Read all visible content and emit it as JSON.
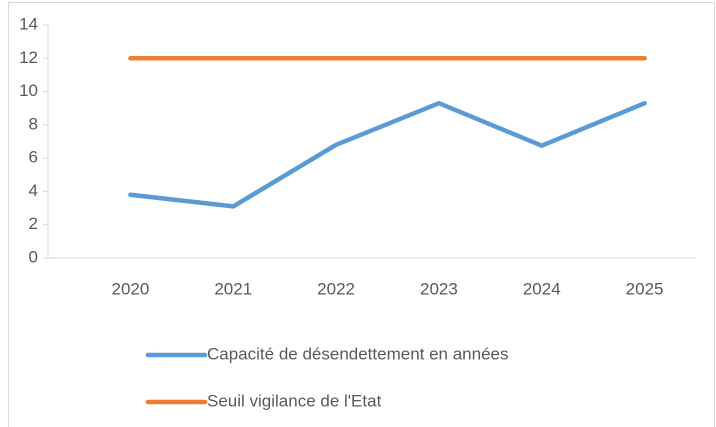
{
  "chart_data": {
    "type": "line",
    "categories": [
      "2020",
      "2021",
      "2022",
      "2023",
      "2024",
      "2025"
    ],
    "series": [
      {
        "name": "Capacité de désendettement en années",
        "color": "#5b9bd5",
        "values": [
          3.8,
          3.1,
          6.8,
          9.3,
          6.75,
          9.3
        ]
      },
      {
        "name": "Seuil vigilance de l'Etat",
        "color": "#ed7d31",
        "values": [
          12,
          12,
          12,
          12,
          12,
          12
        ]
      }
    ],
    "ylim": [
      0,
      14
    ],
    "yticks": [
      0,
      2,
      4,
      6,
      8,
      10,
      12,
      14
    ],
    "grid": false,
    "legend": "bottom"
  }
}
